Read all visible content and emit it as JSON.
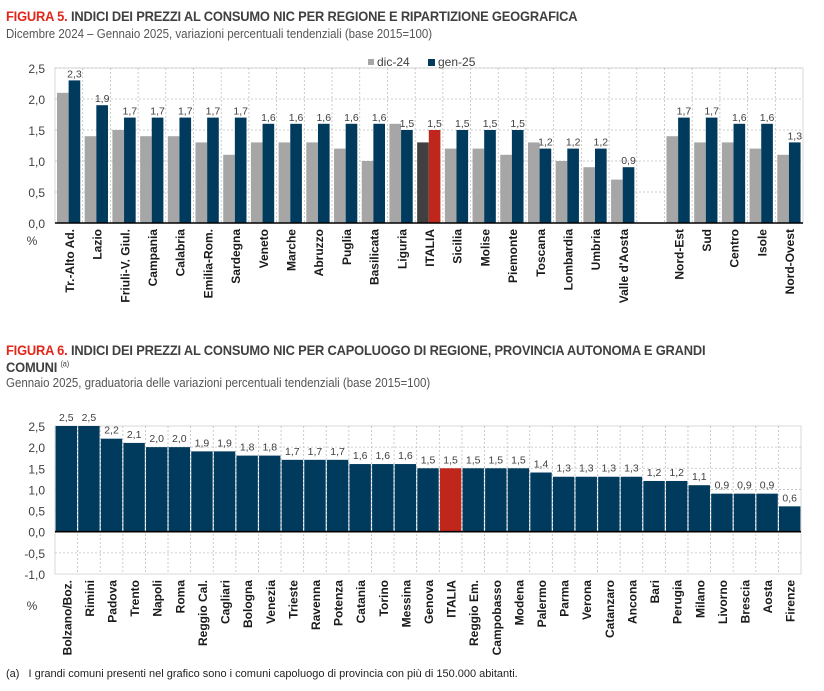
{
  "figure5": {
    "fig_label": "FIGURA 5.",
    "title": "INDICI DEI PREZZI AL CONSUMO NIC PER REGIONE E RIPARTIZIONE GEOGRAFICA",
    "subtitle": "Dicembre 2024 – Gennaio 2025, variazioni percentuali tendenziali (base 2015=100)"
  },
  "figure6": {
    "fig_label": "FIGURA 6.",
    "title_line1": "INDICI DEI PREZZI AL CONSUMO NIC PER CAPOLUOGO DI REGIONE, PROVINCIA AUTONOMA E GRANDI",
    "title_line2": "COMUNI",
    "title_sup": "(a)",
    "subtitle": "Gennaio 2025, graduatoria delle variazioni percentuali tendenziali (base 2015=100)"
  },
  "footnote": {
    "marker": "(a)",
    "text": "I grandi comuni presenti nel grafico sono i comuni capoluogo di provincia con più di 150.000 abitanti."
  },
  "colors": {
    "series_dic24": "#a6a6a6",
    "series_gen25": "#003a5d",
    "italia_gen25": "#c0271c",
    "italia_dic24": "#404040"
  },
  "chart_data": [
    {
      "type": "bar",
      "title": "INDICI DEI PREZZI AL CONSUMO NIC PER REGIONE E RIPARTIZIONE GEOGRAFICA",
      "ylabel": "%",
      "ylim": [
        0,
        2.5
      ],
      "yticks": [
        "0,0",
        "0,5",
        "1,0",
        "1,5",
        "2,0",
        "2,5"
      ],
      "grid": true,
      "legend": "top-right",
      "categories": [
        "Tr.-Alto Ad.",
        "Lazio",
        "Friuli-V. Giul.",
        "Campania",
        "Calabria",
        "Emilia-Rom.",
        "Sardegna",
        "Veneto",
        "Marche",
        "Abruzzo",
        "Puglia",
        "Basilicata",
        "Liguria",
        "ITALIA",
        "Sicilia",
        "Molise",
        "Piemonte",
        "Toscana",
        "Lombardia",
        "Umbria",
        "Valle d'Aosta",
        "",
        "Nord-Est",
        "Sud",
        "Centro",
        "Isole",
        "Nord-Ovest"
      ],
      "highlight": "ITALIA",
      "series": [
        {
          "name": "dic-24",
          "values": [
            2.1,
            1.4,
            1.5,
            1.4,
            1.4,
            1.3,
            1.1,
            1.3,
            1.3,
            1.3,
            1.2,
            1.0,
            1.6,
            1.3,
            1.2,
            1.2,
            1.1,
            1.3,
            1.0,
            0.9,
            0.7,
            null,
            1.4,
            1.3,
            1.3,
            1.2,
            1.1
          ]
        },
        {
          "name": "gen-25",
          "values": [
            2.3,
            1.9,
            1.7,
            1.7,
            1.7,
            1.7,
            1.7,
            1.6,
            1.6,
            1.6,
            1.6,
            1.6,
            1.5,
            1.5,
            1.5,
            1.5,
            1.5,
            1.2,
            1.2,
            1.2,
            0.9,
            null,
            1.7,
            1.7,
            1.6,
            1.6,
            1.3
          ],
          "labels": [
            "2,3",
            "1,9",
            "1,7",
            "1,7",
            "1,7",
            "1,7",
            "1,7",
            "1,6",
            "1,6",
            "1,6",
            "1,6",
            "1,6",
            "1,5",
            "1,5",
            "1,5",
            "1,5",
            "1,5",
            "1,2",
            "1,2",
            "1,2",
            "0,9",
            "",
            "1,7",
            "1,7",
            "1,6",
            "1,6",
            "1,3"
          ]
        }
      ]
    },
    {
      "type": "bar",
      "title": "INDICI DEI PREZZI AL CONSUMO NIC PER CAPOLUOGO DI REGIONE, PROVINCIA AUTONOMA E GRANDI COMUNI",
      "ylabel": "%",
      "ylim": [
        -1.0,
        2.5
      ],
      "yticks": [
        "-1,0",
        "-0,5",
        "0,0",
        "0,5",
        "1,0",
        "1,5",
        "2,0",
        "2,5"
      ],
      "grid": true,
      "highlight": "ITALIA",
      "categories": [
        "Bolzano/Boz.",
        "Rimini",
        "Padova",
        "Trento",
        "Napoli",
        "Roma",
        "Reggio Cal.",
        "Cagliari",
        "Bologna",
        "Venezia",
        "Trieste",
        "Ravenna",
        "Potenza",
        "Catania",
        "Torino",
        "Messina",
        "Genova",
        "ITALIA",
        "Reggio Em.",
        "Campobasso",
        "Modena",
        "Palermo",
        "Parma",
        "Verona",
        "Catanzaro",
        "Ancona",
        "Bari",
        "Perugia",
        "Milano",
        "Livorno",
        "Brescia",
        "Aosta",
        "Firenze"
      ],
      "values": [
        2.5,
        2.5,
        2.2,
        2.1,
        2.0,
        2.0,
        1.9,
        1.9,
        1.8,
        1.8,
        1.7,
        1.7,
        1.7,
        1.6,
        1.6,
        1.6,
        1.5,
        1.5,
        1.5,
        1.5,
        1.5,
        1.4,
        1.3,
        1.3,
        1.3,
        1.3,
        1.2,
        1.2,
        1.1,
        0.9,
        0.9,
        0.9,
        0.6
      ],
      "labels": [
        "2,5",
        "2,5",
        "2,2",
        "2,1",
        "2,0",
        "2,0",
        "1,9",
        "1,9",
        "1,8",
        "1,8",
        "1,7",
        "1,7",
        "1,7",
        "1,6",
        "1,6",
        "1,6",
        "1,5",
        "1,5",
        "1,5",
        "1,5",
        "1,5",
        "1,4",
        "1,3",
        "1,3",
        "1,3",
        "1,3",
        "1,2",
        "1,2",
        "1,1",
        "0,9",
        "0,9",
        "0,9",
        "0,6"
      ]
    }
  ]
}
